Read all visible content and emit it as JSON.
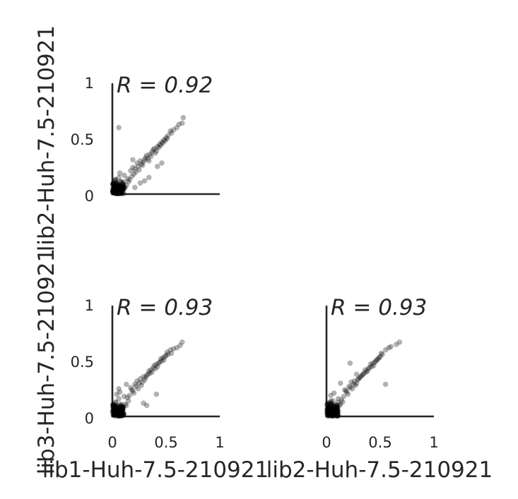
{
  "colors": {
    "axes": "#262626",
    "points": "#000000"
  },
  "chart_data": {
    "type": "scatter",
    "layout": "pairplot-lower-triangle",
    "xlim": [
      0,
      1
    ],
    "ylim": [
      0,
      1
    ],
    "grid": false,
    "labels": {
      "x_left": "lib1-Huh-7.5-210921",
      "x_right": "lib2-Huh-7.5-210921",
      "y_top": "lib2-Huh-7.5-210921",
      "y_bottom": "lib3-Huh-7.5-210921"
    },
    "xticks": [
      "0",
      "0.5",
      "1"
    ],
    "yticks": [
      "0",
      "0.5",
      "1"
    ],
    "panels": [
      {
        "id": "lib1-vs-lib2",
        "annotation": "R = 0.92",
        "x": [
          0.02,
          0.05,
          0.08,
          0.1,
          0.12,
          0.03,
          0.06,
          0.09,
          0.13,
          0.15,
          0.11,
          0.04,
          0.07,
          0.14,
          0.16,
          0.18,
          0.2,
          0.17,
          0.19,
          0.22,
          0.21,
          0.24,
          0.25,
          0.23,
          0.27,
          0.26,
          0.28,
          0.3,
          0.29,
          0.31,
          0.33,
          0.32,
          0.35,
          0.34,
          0.37,
          0.36,
          0.38,
          0.4,
          0.39,
          0.42,
          0.41,
          0.44,
          0.43,
          0.46,
          0.45,
          0.48,
          0.47,
          0.5,
          0.49,
          0.52,
          0.51,
          0.55,
          0.54,
          0.57,
          0.6,
          0.62,
          0.65,
          0.66,
          0.06,
          0.3,
          0.34,
          0.26,
          0.21,
          0.42,
          0.46,
          0.19
        ],
        "y": [
          0.03,
          0.05,
          0.04,
          0.09,
          0.06,
          0.12,
          0.15,
          0.1,
          0.08,
          0.11,
          0.17,
          0.02,
          0.19,
          0.14,
          0.13,
          0.16,
          0.18,
          0.21,
          0.24,
          0.2,
          0.23,
          0.25,
          0.22,
          0.28,
          0.27,
          0.3,
          0.26,
          0.31,
          0.29,
          0.33,
          0.32,
          0.35,
          0.36,
          0.3,
          0.38,
          0.34,
          0.4,
          0.37,
          0.41,
          0.43,
          0.39,
          0.45,
          0.42,
          0.47,
          0.44,
          0.49,
          0.46,
          0.51,
          0.48,
          0.53,
          0.5,
          0.55,
          0.57,
          0.58,
          0.6,
          0.63,
          0.64,
          0.69,
          0.6,
          0.12,
          0.15,
          0.1,
          0.06,
          0.25,
          0.28,
          0.31
        ]
      },
      {
        "id": "lib1-vs-lib3",
        "annotation": "R = 0.93",
        "x": [
          0.02,
          0.05,
          0.08,
          0.1,
          0.12,
          0.03,
          0.06,
          0.09,
          0.13,
          0.15,
          0.11,
          0.04,
          0.07,
          0.14,
          0.16,
          0.18,
          0.2,
          0.17,
          0.19,
          0.22,
          0.21,
          0.24,
          0.25,
          0.23,
          0.27,
          0.26,
          0.28,
          0.3,
          0.29,
          0.31,
          0.33,
          0.32,
          0.35,
          0.34,
          0.37,
          0.36,
          0.38,
          0.4,
          0.39,
          0.42,
          0.41,
          0.44,
          0.43,
          0.46,
          0.45,
          0.48,
          0.47,
          0.5,
          0.49,
          0.52,
          0.51,
          0.55,
          0.54,
          0.57,
          0.6,
          0.63,
          0.65,
          0.13,
          0.29,
          0.32,
          0.41,
          0.06
        ],
        "y": [
          0.04,
          0.03,
          0.07,
          0.09,
          0.11,
          0.13,
          0.16,
          0.06,
          0.1,
          0.14,
          0.18,
          0.2,
          0.22,
          0.17,
          0.19,
          0.24,
          0.21,
          0.26,
          0.23,
          0.27,
          0.29,
          0.25,
          0.3,
          0.32,
          0.28,
          0.34,
          0.31,
          0.33,
          0.36,
          0.35,
          0.38,
          0.37,
          0.39,
          0.41,
          0.4,
          0.42,
          0.44,
          0.43,
          0.46,
          0.45,
          0.47,
          0.49,
          0.48,
          0.5,
          0.52,
          0.51,
          0.53,
          0.55,
          0.54,
          0.56,
          0.58,
          0.57,
          0.6,
          0.61,
          0.62,
          0.64,
          0.67,
          0.29,
          0.12,
          0.1,
          0.2,
          0.25
        ]
      },
      {
        "id": "lib2-vs-lib3",
        "annotation": "R = 0.93",
        "x": [
          0.02,
          0.05,
          0.08,
          0.1,
          0.12,
          0.03,
          0.06,
          0.09,
          0.13,
          0.15,
          0.11,
          0.04,
          0.07,
          0.14,
          0.16,
          0.18,
          0.2,
          0.17,
          0.19,
          0.22,
          0.21,
          0.24,
          0.25,
          0.23,
          0.27,
          0.26,
          0.28,
          0.3,
          0.29,
          0.31,
          0.33,
          0.32,
          0.35,
          0.34,
          0.37,
          0.36,
          0.38,
          0.4,
          0.39,
          0.42,
          0.41,
          0.44,
          0.43,
          0.46,
          0.45,
          0.48,
          0.47,
          0.5,
          0.49,
          0.52,
          0.51,
          0.55,
          0.58,
          0.6,
          0.65,
          0.68,
          0.55,
          0.22,
          0.28,
          0.13
        ],
        "y": [
          0.03,
          0.05,
          0.04,
          0.08,
          0.1,
          0.12,
          0.14,
          0.07,
          0.11,
          0.13,
          0.16,
          0.19,
          0.21,
          0.15,
          0.18,
          0.23,
          0.2,
          0.24,
          0.22,
          0.26,
          0.27,
          0.25,
          0.29,
          0.31,
          0.28,
          0.32,
          0.3,
          0.34,
          0.33,
          0.35,
          0.37,
          0.36,
          0.39,
          0.38,
          0.4,
          0.42,
          0.41,
          0.44,
          0.43,
          0.45,
          0.47,
          0.46,
          0.48,
          0.5,
          0.49,
          0.52,
          0.51,
          0.54,
          0.53,
          0.56,
          0.57,
          0.6,
          0.62,
          0.63,
          0.65,
          0.67,
          0.29,
          0.48,
          0.38,
          0.3
        ]
      }
    ]
  }
}
